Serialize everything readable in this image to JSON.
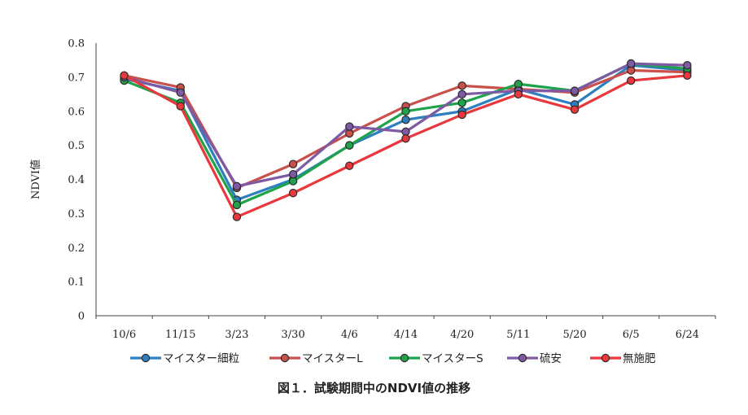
{
  "caption": "図１．試験期間中のNDVI値の推移",
  "chart_data": {
    "type": "line",
    "ylabel": "NDVI値",
    "ylim": [
      0,
      0.8
    ],
    "yticks": [
      "0",
      "0.1",
      "0.2",
      "0.3",
      "0.4",
      "0.5",
      "0.6",
      "0.7",
      "0.8"
    ],
    "categories": [
      "10/6",
      "11/15",
      "3/23",
      "3/30",
      "4/6",
      "4/14",
      "4/20",
      "5/11",
      "5/20",
      "6/5",
      "6/24"
    ],
    "legend_position": "bottom",
    "series": [
      {
        "name": "マイスター細粒",
        "color": "#2e7fc0",
        "values": [
          0.695,
          0.66,
          0.34,
          0.4,
          0.5,
          0.575,
          0.6,
          0.665,
          0.62,
          0.735,
          0.72
        ]
      },
      {
        "name": "マイスターL",
        "color": "#c9504b",
        "values": [
          0.705,
          0.67,
          0.375,
          0.445,
          0.535,
          0.615,
          0.675,
          0.665,
          0.655,
          0.72,
          0.715
        ]
      },
      {
        "name": "マイスターS",
        "color": "#1fa34a",
        "values": [
          0.69,
          0.625,
          0.325,
          0.395,
          0.5,
          0.6,
          0.625,
          0.68,
          0.66,
          0.74,
          0.725
        ]
      },
      {
        "name": "硫安",
        "color": "#7d5aa3",
        "values": [
          0.7,
          0.655,
          0.38,
          0.415,
          0.555,
          0.54,
          0.65,
          0.66,
          0.66,
          0.74,
          0.735
        ]
      },
      {
        "name": "無施肥",
        "color": "#e8383d",
        "values": [
          0.705,
          0.615,
          0.29,
          0.36,
          0.44,
          0.52,
          0.59,
          0.65,
          0.605,
          0.69,
          0.705
        ]
      }
    ]
  }
}
